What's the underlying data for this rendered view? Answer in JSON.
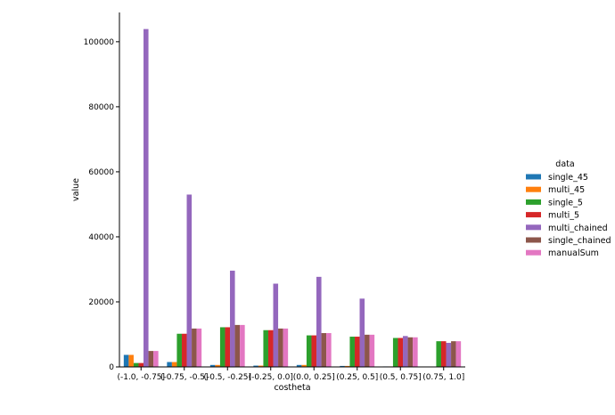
{
  "chart_data": {
    "type": "bar",
    "xlabel": "costheta",
    "ylabel": "value",
    "ylim": [
      0,
      109000
    ],
    "yticks": [
      0,
      20000,
      40000,
      60000,
      80000,
      100000
    ],
    "ytick_labels": [
      "0",
      "20000",
      "40000",
      "60000",
      "80000",
      "100000"
    ],
    "categories": [
      "(-1.0, -0.75]",
      "(-0.75, -0.5]",
      "(-0.5, -0.25]",
      "(-0.25, 0.0]",
      "(0.0, 0.25]",
      "(0.25, 0.5]",
      "(0.5, 0.75]",
      "(0.75, 1.0]"
    ],
    "legend_title": "data",
    "legend_position": "right",
    "series": [
      {
        "name": "single_45",
        "color": "#1f77b4",
        "values": [
          3700,
          1500,
          600,
          400,
          600,
          300,
          150,
          50
        ]
      },
      {
        "name": "multi_45",
        "color": "#ff7f0e",
        "values": [
          3700,
          1500,
          600,
          400,
          600,
          300,
          150,
          50
        ]
      },
      {
        "name": "single_5",
        "color": "#2ca02c",
        "values": [
          1200,
          10200,
          12200,
          11300,
          9700,
          9300,
          8900,
          7900
        ]
      },
      {
        "name": "multi_5",
        "color": "#d62728",
        "values": [
          1200,
          10200,
          12200,
          11300,
          9700,
          9300,
          8900,
          7900
        ]
      },
      {
        "name": "multi_chained",
        "color": "#9467bd",
        "values": [
          103900,
          53000,
          29600,
          25600,
          27700,
          21000,
          9500,
          7400
        ]
      },
      {
        "name": "single_chained",
        "color": "#8c564b",
        "values": [
          4900,
          11800,
          12900,
          11800,
          10400,
          9900,
          9100,
          7900
        ]
      },
      {
        "name": "manualSum",
        "color": "#e377c2",
        "values": [
          4900,
          11800,
          12900,
          11800,
          10400,
          9900,
          9100,
          7900
        ]
      }
    ]
  }
}
